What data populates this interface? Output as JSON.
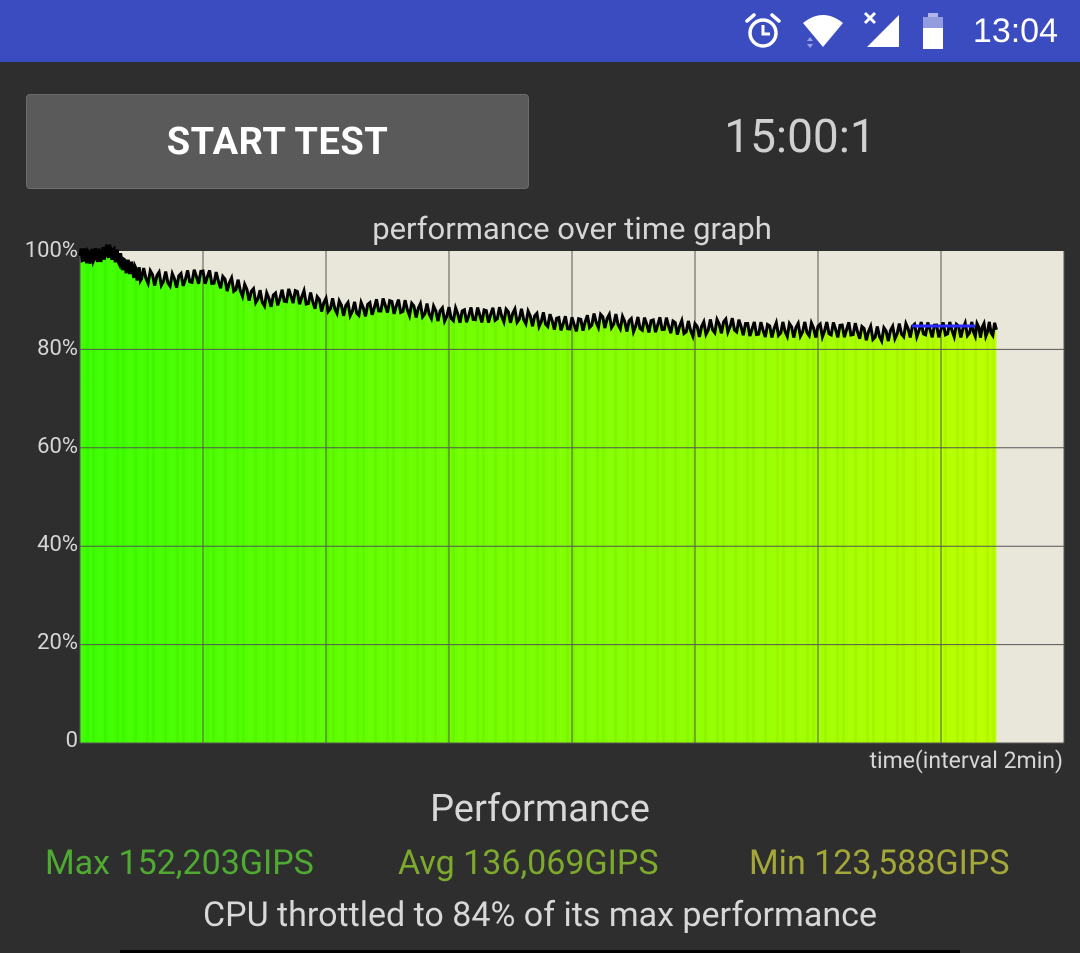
{
  "status_bar": {
    "time": "13:04",
    "icons": [
      "alarm-clock-icon",
      "wifi-icon",
      "cellular-no-signal-icon",
      "battery-icon"
    ]
  },
  "controls": {
    "start_label": "START TEST",
    "timer": "15:00:1"
  },
  "chart_data": {
    "type": "area",
    "title": "performance over time graph",
    "xlabel": "time(interval 2min)",
    "ylabel": "",
    "y_tick_labels": [
      "100%",
      "80%",
      "60%",
      "40%",
      "20%",
      "0"
    ],
    "ylim": [
      0,
      100
    ],
    "x_interval_minutes": 2,
    "x_range_minutes": [
      0,
      16
    ],
    "grid": true,
    "series": [
      {
        "x": [
          0,
          0.25,
          0.5,
          0.75,
          1,
          1.5,
          2,
          2.5,
          3,
          3.5,
          4,
          4.5,
          5,
          5.5,
          6,
          6.5,
          7,
          7.5,
          8,
          8.5,
          9,
          9.5,
          10,
          10.5,
          11,
          11.5,
          12,
          12.5,
          13,
          13.5,
          14,
          14.5,
          14.9
        ],
        "y": [
          99,
          99,
          100,
          97,
          95,
          94,
          95,
          93,
          90,
          91,
          89,
          88,
          89,
          88,
          87,
          87,
          87,
          86,
          85,
          86,
          85,
          85,
          84,
          85,
          84,
          84,
          84,
          84,
          83,
          84,
          84,
          84,
          84
        ]
      }
    ],
    "colors": {
      "fill_start": "#3cff00",
      "fill_end": "#bbff00",
      "line": "#000000",
      "background": "#e9e7d9",
      "grid": "#555555"
    }
  },
  "performance": {
    "title": "Performance",
    "max": "Max 152,203GIPS",
    "avg": "Avg 136,069GIPS",
    "min": "Min 123,588GIPS",
    "throttle": "CPU throttled to 84% of its max performance"
  }
}
